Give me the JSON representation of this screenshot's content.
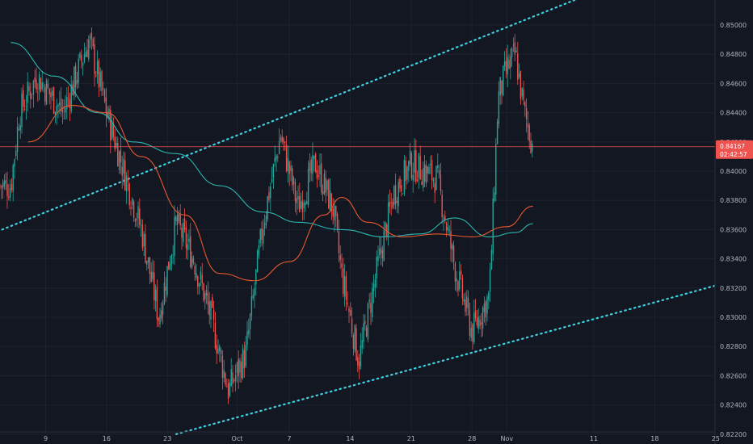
{
  "chart_data": {
    "type": "candlestick",
    "timeframe_hint": "4h",
    "colors": {
      "background": "#131722",
      "grid": "#1e222d",
      "up": "#26a69a",
      "down": "#ef5350",
      "ema_fast": "#e8582f",
      "ema_slow": "#2bb7b1",
      "channel": "#3fd1e0",
      "axis_text": "#b2b5be",
      "price_line": "#ef5350"
    },
    "x_tick_labels": [
      "9",
      "16",
      "23",
      "Oct",
      "7",
      "14",
      "21",
      "28",
      "Nov",
      "11",
      "18",
      "25"
    ],
    "y_tick_labels": [
      "0.85000",
      "0.84800",
      "0.84600",
      "0.84400",
      "0.84200",
      "0.84000",
      "0.83800",
      "0.83600",
      "0.83400",
      "0.83200",
      "0.83000",
      "0.82800",
      "0.82600",
      "0.82400",
      "0.82200"
    ],
    "ylim": [
      0.822,
      0.8515
    ],
    "grid": true,
    "current_price": {
      "value": "0.84167",
      "countdown": "02:42:57",
      "level": 0.84167
    },
    "key_points": [
      {
        "date": "Sep 5",
        "close": 0.839
      },
      {
        "date": "Sep 6",
        "close": 0.844
      },
      {
        "date": "Sep 8",
        "close": 0.8465
      },
      {
        "date": "Sep 11",
        "close": 0.844
      },
      {
        "date": "Sep 14",
        "close": 0.849
      },
      {
        "date": "Sep 16",
        "close": 0.844
      },
      {
        "date": "Sep 18",
        "close": 0.84
      },
      {
        "date": "Sep 20",
        "close": 0.836
      },
      {
        "date": "Sep 22",
        "close": 0.83
      },
      {
        "date": "Sep 24",
        "close": 0.8365
      },
      {
        "date": "Sep 26",
        "close": 0.834
      },
      {
        "date": "Sep 28",
        "close": 0.83
      },
      {
        "date": "Sep 30",
        "close": 0.825
      },
      {
        "date": "Oct 2",
        "close": 0.8275
      },
      {
        "date": "Oct 4",
        "close": 0.8365
      },
      {
        "date": "Oct 6",
        "close": 0.8425
      },
      {
        "date": "Oct 8",
        "close": 0.8375
      },
      {
        "date": "Oct 10",
        "close": 0.8405
      },
      {
        "date": "Oct 12",
        "close": 0.8375
      },
      {
        "date": "Oct 13",
        "close": 0.833
      },
      {
        "date": "Oct 15",
        "close": 0.827
      },
      {
        "date": "Oct 17",
        "close": 0.833
      },
      {
        "date": "Oct 19",
        "close": 0.8385
      },
      {
        "date": "Oct 21",
        "close": 0.8405
      },
      {
        "date": "Oct 24",
        "close": 0.8395
      },
      {
        "date": "Oct 26",
        "close": 0.8335
      },
      {
        "date": "Oct 28",
        "close": 0.829
      },
      {
        "date": "Oct 30",
        "close": 0.8315
      },
      {
        "date": "Oct 31",
        "close": 0.845
      },
      {
        "date": "Nov 1",
        "close": 0.847
      },
      {
        "date": "Nov 2",
        "close": 0.848
      },
      {
        "date": "Nov 3",
        "close": 0.844
      },
      {
        "date": "Nov 4",
        "close": 0.8417
      }
    ],
    "ema_fast": [
      {
        "date": "Sep 7",
        "value": 0.842
      },
      {
        "date": "Sep 12",
        "value": 0.8445
      },
      {
        "date": "Sep 16",
        "value": 0.844
      },
      {
        "date": "Sep 20",
        "value": 0.841
      },
      {
        "date": "Sep 25",
        "value": 0.837
      },
      {
        "date": "Sep 29",
        "value": 0.833
      },
      {
        "date": "Oct 3",
        "value": 0.8325
      },
      {
        "date": "Oct 7",
        "value": 0.8338
      },
      {
        "date": "Oct 11",
        "value": 0.837
      },
      {
        "date": "Oct 13",
        "value": 0.8382
      },
      {
        "date": "Oct 16",
        "value": 0.8365
      },
      {
        "date": "Oct 20",
        "value": 0.8355
      },
      {
        "date": "Oct 24",
        "value": 0.8357
      },
      {
        "date": "Oct 28",
        "value": 0.8355
      },
      {
        "date": "Nov 1",
        "value": 0.8362
      },
      {
        "date": "Nov 4",
        "value": 0.8376
      }
    ],
    "ema_slow": [
      {
        "date": "Sep 5",
        "value": 0.8488
      },
      {
        "date": "Sep 10",
        "value": 0.8465
      },
      {
        "date": "Sep 15",
        "value": 0.844
      },
      {
        "date": "Sep 19",
        "value": 0.842
      },
      {
        "date": "Sep 24",
        "value": 0.8412
      },
      {
        "date": "Sep 29",
        "value": 0.839
      },
      {
        "date": "Oct 4",
        "value": 0.8372
      },
      {
        "date": "Oct 8",
        "value": 0.8365
      },
      {
        "date": "Oct 13",
        "value": 0.836
      },
      {
        "date": "Oct 18",
        "value": 0.8355
      },
      {
        "date": "Oct 22",
        "value": 0.8357
      },
      {
        "date": "Oct 26",
        "value": 0.8368
      },
      {
        "date": "Oct 30",
        "value": 0.8355
      },
      {
        "date": "Nov 2",
        "value": 0.8358
      },
      {
        "date": "Nov 4",
        "value": 0.8364
      }
    ],
    "channel_lines": [
      {
        "name": "upper",
        "from": {
          "date": "Sep 4",
          "value": 0.836
        },
        "to": {
          "date": "Nov 10",
          "value": 0.852
        }
      },
      {
        "name": "lower",
        "from": {
          "date": "Sep 24",
          "value": 0.822
        },
        "to": {
          "date": "Nov 27",
          "value": 0.8325
        }
      }
    ]
  }
}
